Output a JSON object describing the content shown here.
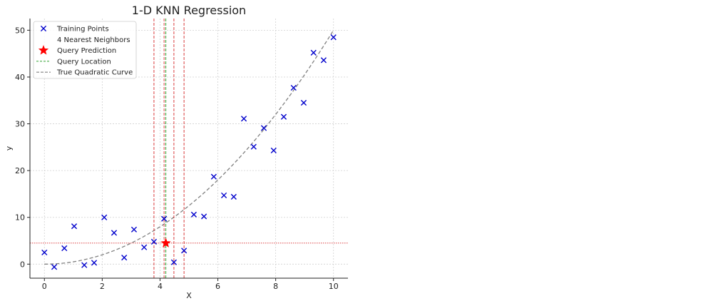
{
  "chart_data": {
    "type": "scatter",
    "title": "1-D KNN Regression",
    "xlabel": "X",
    "ylabel": "y",
    "xlim": [
      -0.5,
      10.5
    ],
    "ylim": [
      -3,
      52.5
    ],
    "xticks": [
      "0",
      "2",
      "4",
      "6",
      "8",
      "10"
    ],
    "xtick_values": [
      0,
      2,
      4,
      6,
      8,
      10
    ],
    "yticks": [
      "0",
      "10",
      "20",
      "30",
      "40",
      "50"
    ],
    "ytick_values": [
      0,
      10,
      20,
      30,
      40,
      50
    ],
    "grid": true,
    "legend_position": "top-left",
    "colors": {
      "training": "#0000cc",
      "prediction": "#ff0000",
      "query_line": "#2ca02c",
      "neighbor_line": "#d62728",
      "curve": "#808080"
    },
    "series": [
      {
        "name": "Training Points",
        "kind": "scatter",
        "points": [
          [
            0.0,
            2.5
          ],
          [
            0.34,
            -0.6
          ],
          [
            0.69,
            3.4
          ],
          [
            1.03,
            8.1
          ],
          [
            1.38,
            -0.2
          ],
          [
            1.72,
            0.3
          ],
          [
            2.07,
            10.0
          ],
          [
            2.41,
            6.7
          ],
          [
            2.76,
            1.4
          ],
          [
            3.1,
            7.4
          ],
          [
            3.45,
            3.6
          ],
          [
            3.79,
            4.8
          ],
          [
            4.14,
            9.7
          ],
          [
            4.48,
            0.4
          ],
          [
            4.83,
            2.9
          ],
          [
            5.17,
            10.6
          ],
          [
            5.52,
            10.2
          ],
          [
            5.86,
            18.7
          ],
          [
            6.21,
            14.7
          ],
          [
            6.55,
            14.4
          ],
          [
            6.9,
            31.1
          ],
          [
            7.24,
            25.1
          ],
          [
            7.59,
            29.1
          ],
          [
            7.93,
            24.3
          ],
          [
            8.28,
            31.5
          ],
          [
            8.62,
            37.7
          ],
          [
            8.97,
            34.5
          ],
          [
            9.31,
            45.2
          ],
          [
            9.66,
            43.6
          ],
          [
            10.0,
            48.5
          ]
        ]
      },
      {
        "name": "4 Nearest Neighbors",
        "kind": "vlines",
        "x": [
          3.79,
          4.14,
          4.48,
          4.83
        ]
      },
      {
        "name": "Query Prediction",
        "kind": "star",
        "x": 4.2,
        "y": 4.5
      },
      {
        "name": "Query Location",
        "kind": "vline",
        "x": 4.2
      },
      {
        "name": "True Quadratic Curve",
        "kind": "curve",
        "formula": "y = 0.5 * x^2",
        "x_range": [
          0,
          10
        ]
      }
    ],
    "prediction_hline": 4.5
  }
}
